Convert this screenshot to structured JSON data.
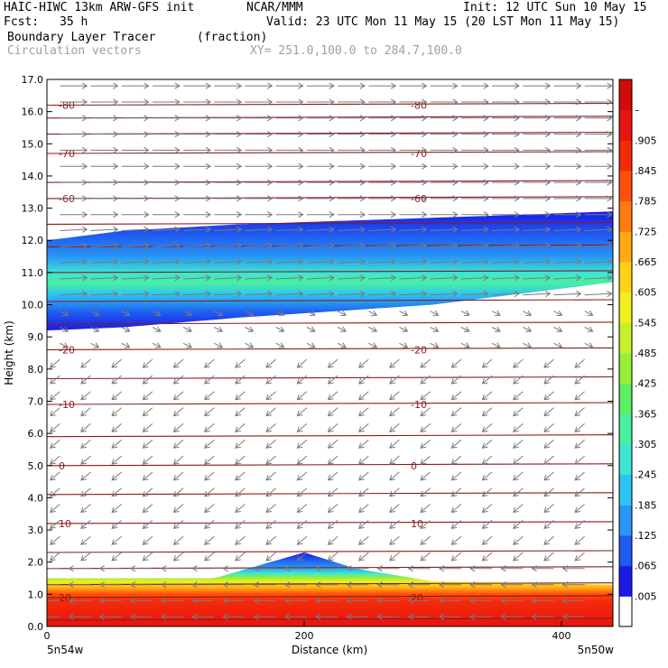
{
  "header": {
    "model": "HAIC-HIWC 13km ARW-GFS init",
    "org": "NCAR/MMM",
    "init": "Init: 12 UTC Sun 10 May 15",
    "fcst_label": "Fcst:",
    "fcst_value": "35 h",
    "valid": "Valid: 23 UTC Mon 11 May 15 (20 LST Mon 11 May 15)",
    "field": "Boundary Layer Tracer",
    "units": "(fraction)",
    "overlay": "Circulation vectors",
    "xy": "XY= 251.0,100.0 to 284.7,100.0"
  },
  "chart_data": {
    "type": "heatmap",
    "title": "Boundary Layer Tracer",
    "xlabel": "Distance (km)",
    "ylabel": "Height (km)",
    "xlim": [
      0,
      440
    ],
    "ylim": [
      0,
      17
    ],
    "x_ticks": [
      "0",
      "200",
      "400"
    ],
    "x_tick_values": [
      0,
      200,
      400
    ],
    "x_end_labels": {
      "left": "5n54w",
      "right": "5n50w"
    },
    "y_ticks": [
      "0.0",
      "1.0",
      "2.0",
      "3.0",
      "4.0",
      "5.0",
      "6.0",
      "7.0",
      "8.0",
      "9.0",
      "10.0",
      "11.0",
      "12.0",
      "13.0",
      "14.0",
      "15.0",
      "16.0",
      "17.0"
    ],
    "colorbar": {
      "labels": [
        ".005",
        ".065",
        ".125",
        ".185",
        ".245",
        ".305",
        ".365",
        ".425",
        ".485",
        ".545",
        ".605",
        ".665",
        ".725",
        ".785",
        ".845",
        ".905",
        "–"
      ],
      "colors": [
        "#ffffff",
        "#1a1ae6",
        "#1f5cf0",
        "#2896f5",
        "#2ec4f2",
        "#3ce6d2",
        "#48f0a0",
        "#5cf064",
        "#96f03c",
        "#c8f02a",
        "#f0f01e",
        "#ffd21a",
        "#ffaa14",
        "#ff7a10",
        "#ff500c",
        "#f52a0a",
        "#e61410",
        "#d20a0a"
      ]
    },
    "tracer_layers": [
      {
        "name": "upper_outflow",
        "x": [
          0,
          60,
          150,
          300,
          440
        ],
        "bottom_km": [
          9.2,
          9.3,
          9.6,
          10.0,
          10.7
        ],
        "top_km": [
          12.0,
          12.3,
          12.5,
          12.7,
          12.9
        ],
        "core_km": [
          10.6,
          10.8,
          11.0,
          11.3,
          11.5
        ],
        "peak": 0.4
      },
      {
        "name": "boundary_layer",
        "x": [
          0,
          130,
          200,
          240,
          300,
          440
        ],
        "top_km": [
          1.5,
          1.5,
          2.3,
          1.8,
          1.4,
          1.3
        ],
        "peak": 0.95
      }
    ],
    "temperature_contours": [
      {
        "label": "-80",
        "height_km": 16.2
      },
      {
        "label": "-70",
        "height_km": 14.7
      },
      {
        "label": "-60",
        "height_km": 13.3
      },
      {
        "label": "-20",
        "height_km": 8.6
      },
      {
        "label": "-10",
        "height_km": 6.9
      },
      {
        "label": "0",
        "height_km": 5.0
      },
      {
        "label": "10",
        "height_km": 3.2
      },
      {
        "label": "20",
        "height_km": 0.9
      }
    ],
    "unlabeled_contours_km": [
      0.2,
      1.3,
      1.8,
      2.3,
      4.1,
      5.9,
      7.7,
      9.4,
      10.1,
      11.0,
      11.8,
      12.5,
      13.8,
      15.3,
      15.8
    ],
    "wind_regimes": [
      {
        "from_km": 12.5,
        "to_km": 17.0,
        "u": 1.0,
        "w": 0.0
      },
      {
        "from_km": 10.0,
        "to_km": 12.5,
        "u": 1.0,
        "w": 0.05
      },
      {
        "from_km": 8.8,
        "to_km": 10.0,
        "u": 0.3,
        "w": -0.15
      },
      {
        "from_km": 2.0,
        "to_km": 8.8,
        "u": -0.35,
        "w": -0.3
      },
      {
        "from_km": 0.0,
        "to_km": 2.0,
        "u": -0.8,
        "w": 0.0
      }
    ]
  }
}
